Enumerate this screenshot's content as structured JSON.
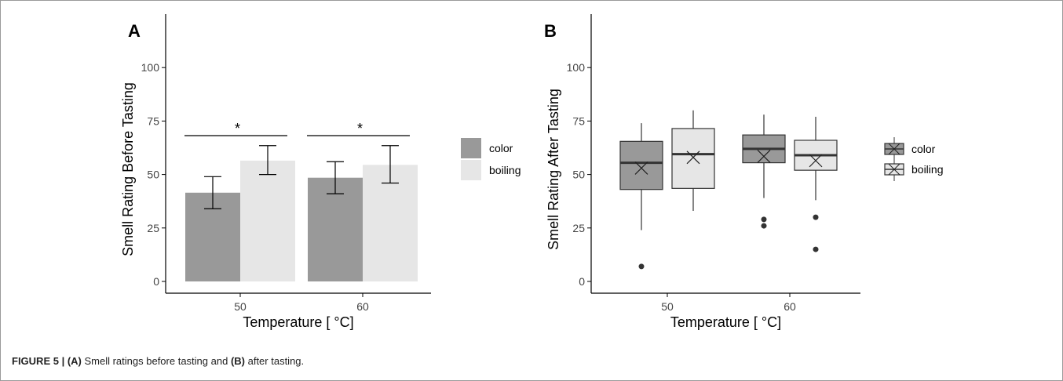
{
  "caption": {
    "label": "FIGURE 5 | ",
    "a_ref": "(A)",
    "a_text": " Smell ratings before tasting and ",
    "b_ref": "(B)",
    "b_text": " after tasting."
  },
  "chart_data": [
    {
      "panel": "A",
      "type": "bar",
      "xlabel": "Temperature [ °C]",
      "ylabel": "Smell Rating Before Tasting",
      "ylim": [
        0,
        125
      ],
      "yticks": [
        0,
        25,
        50,
        75,
        100
      ],
      "categories": [
        "50",
        "60"
      ],
      "series": [
        {
          "name": "color",
          "color": "#999999",
          "values": [
            41.5,
            48.5
          ],
          "err_low": [
            34,
            41
          ],
          "err_high": [
            49,
            56
          ]
        },
        {
          "name": "boiling",
          "color": "#e6e6e6",
          "values": [
            56.5,
            54.5
          ],
          "err_low": [
            50,
            46
          ],
          "err_high": [
            63.5,
            63.5
          ]
        }
      ],
      "significance": [
        {
          "category": "50",
          "label": "*"
        },
        {
          "category": "60",
          "label": "*"
        }
      ],
      "legend_position": "right",
      "grid": false
    },
    {
      "panel": "B",
      "type": "box",
      "xlabel": "Temperature [ °C]",
      "ylabel": "Smell Rating After Tasting",
      "ylim": [
        0,
        125
      ],
      "yticks": [
        0,
        25,
        50,
        75,
        100
      ],
      "categories": [
        "50",
        "60"
      ],
      "series": [
        {
          "name": "color",
          "color": "#999999",
          "boxes": [
            {
              "q1": 43,
              "median": 55.5,
              "q3": 65.5,
              "whisker_low": 24,
              "whisker_high": 74,
              "mean": 53,
              "outliers": [
                7
              ]
            },
            {
              "q1": 55.5,
              "median": 62,
              "q3": 68.5,
              "whisker_low": 39,
              "whisker_high": 78,
              "mean": 58.5,
              "outliers": [
                29,
                26
              ]
            }
          ]
        },
        {
          "name": "boiling",
          "color": "#e6e6e6",
          "boxes": [
            {
              "q1": 43.5,
              "median": 59.5,
              "q3": 71.5,
              "whisker_low": 33,
              "whisker_high": 80,
              "mean": 58,
              "outliers": []
            },
            {
              "q1": 52,
              "median": 59,
              "q3": 66,
              "whisker_low": 38,
              "whisker_high": 77,
              "mean": 56.5,
              "outliers": [
                30,
                15
              ]
            }
          ]
        }
      ],
      "legend_position": "right",
      "grid": false
    }
  ]
}
